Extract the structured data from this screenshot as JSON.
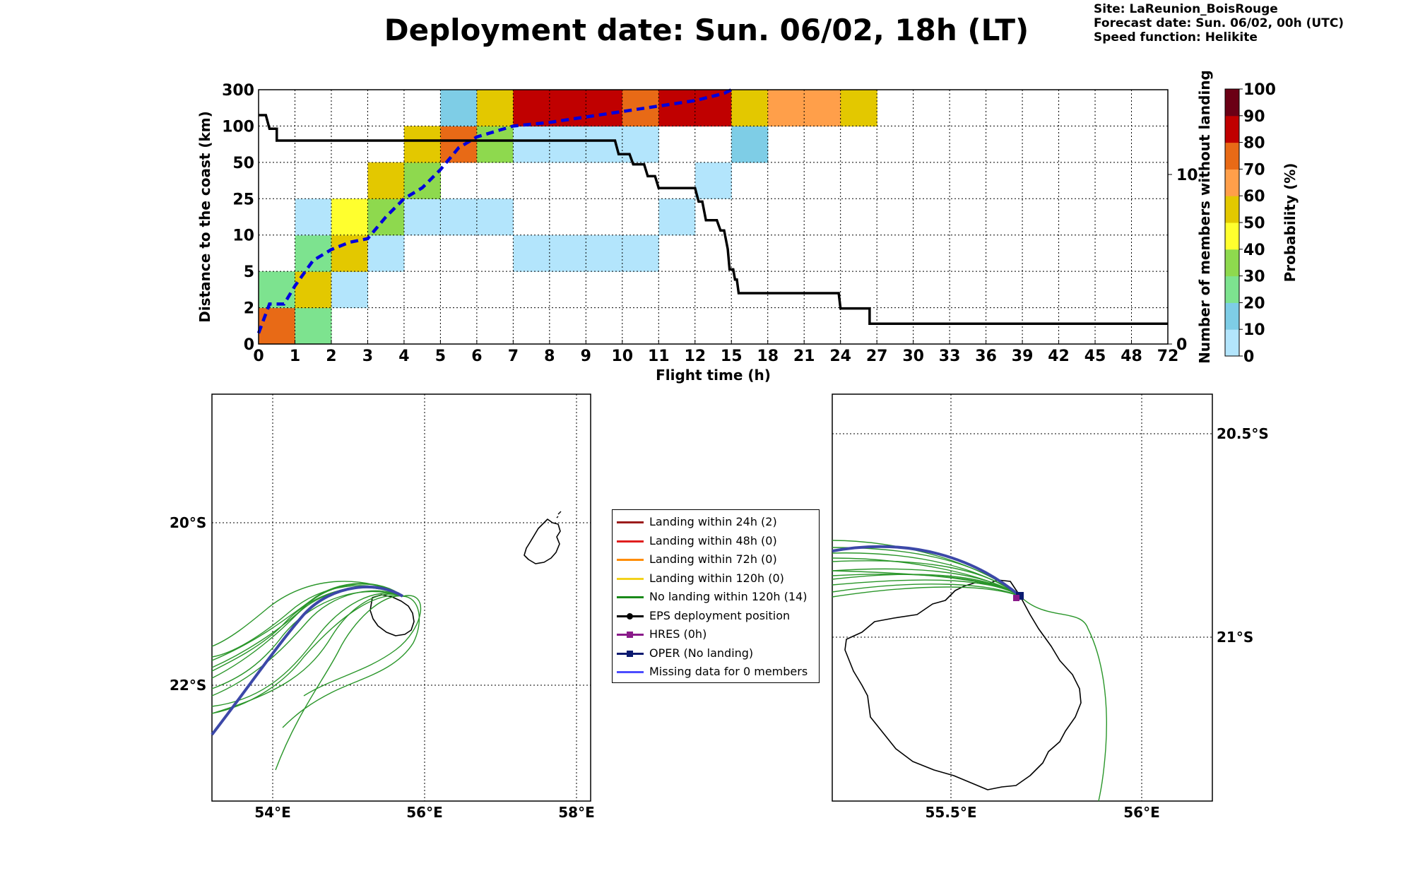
{
  "header": {
    "title": "Deployment date: Sun. 06/02, 18h (LT)",
    "site": "Site: LaReunion_BoisRouge",
    "forecast": "Forecast date: Sun. 06/02, 00h (UTC)",
    "speed": "Speed function: Helikite"
  },
  "colors": {
    "prob_bins": [
      "#b3e5fc",
      "#7ecde6",
      "#7de38f",
      "#8ed94e",
      "#ffff2e",
      "#e3c800",
      "#ff9f4a",
      "#e86a16",
      "#c00000",
      "#6b0015"
    ],
    "eps_members": "#2a962a",
    "oper": "#3c48a8",
    "median_line": "#0000dd",
    "members_line": "#000000"
  },
  "chart_data": [
    {
      "type": "heatmap",
      "xlabel": "Flight time (h)",
      "ylabel": "Distance to the coast (km)",
      "ylabel_right": "Number of members without landing",
      "x_edges": [
        "0",
        "1",
        "2",
        "3",
        "4",
        "5",
        "6",
        "7",
        "8",
        "9",
        "10",
        "11",
        "12",
        "15",
        "18",
        "21",
        "24",
        "27",
        "30",
        "33",
        "36",
        "39",
        "42",
        "45",
        "48",
        "72"
      ],
      "y_edges": [
        "0",
        "2",
        "5",
        "10",
        "25",
        "50",
        "100",
        "300"
      ],
      "y_right_ticks": [
        "0",
        "10"
      ],
      "y_right_max": 15,
      "cells": [
        {
          "x": 0,
          "y": 0,
          "p": 70
        },
        {
          "x": 1,
          "y": 0,
          "p": 20
        },
        {
          "x": 0,
          "y": 1,
          "p": 20
        },
        {
          "x": 1,
          "y": 1,
          "p": 50
        },
        {
          "x": 2,
          "y": 1,
          "p": 0
        },
        {
          "x": 1,
          "y": 2,
          "p": 20
        },
        {
          "x": 2,
          "y": 2,
          "p": 50
        },
        {
          "x": 3,
          "y": 2,
          "p": 0
        },
        {
          "x": 7,
          "y": 2,
          "p": 0
        },
        {
          "x": 8,
          "y": 2,
          "p": 0
        },
        {
          "x": 9,
          "y": 2,
          "p": 0
        },
        {
          "x": 10,
          "y": 2,
          "p": 0
        },
        {
          "x": 1,
          "y": 3,
          "p": 0
        },
        {
          "x": 2,
          "y": 3,
          "p": 40
        },
        {
          "x": 3,
          "y": 3,
          "p": 30
        },
        {
          "x": 4,
          "y": 3,
          "p": 0
        },
        {
          "x": 5,
          "y": 3,
          "p": 0
        },
        {
          "x": 6,
          "y": 3,
          "p": 0
        },
        {
          "x": 11,
          "y": 3,
          "p": 0
        },
        {
          "x": 3,
          "y": 4,
          "p": 50
        },
        {
          "x": 4,
          "y": 4,
          "p": 30
        },
        {
          "x": 12,
          "y": 4,
          "p": 0
        },
        {
          "x": 4,
          "y": 5,
          "p": 50
        },
        {
          "x": 5,
          "y": 5,
          "p": 70
        },
        {
          "x": 6,
          "y": 5,
          "p": 30
        },
        {
          "x": 7,
          "y": 5,
          "p": 0
        },
        {
          "x": 8,
          "y": 5,
          "p": 0
        },
        {
          "x": 9,
          "y": 5,
          "p": 0
        },
        {
          "x": 10,
          "y": 5,
          "p": 0
        },
        {
          "x": 13,
          "y": 5,
          "p": 10
        },
        {
          "x": 5,
          "y": 6,
          "p": 10
        },
        {
          "x": 6,
          "y": 6,
          "p": 50
        },
        {
          "x": 7,
          "y": 6,
          "p": 80
        },
        {
          "x": 8,
          "y": 6,
          "p": 80
        },
        {
          "x": 9,
          "y": 6,
          "p": 80
        },
        {
          "x": 10,
          "y": 6,
          "p": 70
        },
        {
          "x": 11,
          "y": 6,
          "p": 80
        },
        {
          "x": 12,
          "y": 6,
          "p": 80
        },
        {
          "x": 13,
          "y": 6,
          "p": 50
        },
        {
          "x": 14,
          "y": 6,
          "p": 60
        },
        {
          "x": 15,
          "y": 6,
          "p": 60
        },
        {
          "x": 16,
          "y": 6,
          "p": 50
        }
      ],
      "median_distance": [
        [
          0,
          0.3
        ],
        [
          0.3,
          1.1
        ],
        [
          0.7,
          1.1
        ],
        [
          1,
          1.6
        ],
        [
          1.5,
          2.3
        ],
        [
          2,
          2.6
        ],
        [
          2.5,
          2.8
        ],
        [
          3,
          2.9
        ],
        [
          3.5,
          3.5
        ],
        [
          4,
          4.0
        ],
        [
          4.5,
          4.3
        ],
        [
          5,
          4.8
        ],
        [
          5.5,
          5.4
        ],
        [
          6,
          5.7
        ],
        [
          7,
          6.0
        ],
        [
          8,
          6.1
        ],
        [
          9,
          6.25
        ],
        [
          10,
          6.4
        ],
        [
          11,
          6.55
        ],
        [
          12,
          6.7
        ],
        [
          12.8,
          6.9
        ],
        [
          13,
          7.0
        ]
      ],
      "members_without_landing": [
        [
          0,
          13.5
        ],
        [
          0.2,
          13.5
        ],
        [
          0.3,
          12.7
        ],
        [
          0.5,
          12.7
        ],
        [
          0.5,
          12.0
        ],
        [
          9.8,
          12.0
        ],
        [
          9.9,
          11.2
        ],
        [
          10.2,
          11.2
        ],
        [
          10.3,
          10.6
        ],
        [
          10.6,
          10.6
        ],
        [
          10.7,
          9.9
        ],
        [
          10.9,
          9.9
        ],
        [
          11,
          9.2
        ],
        [
          12,
          9.2
        ],
        [
          12.1,
          8.4
        ],
        [
          12.2,
          8.4
        ],
        [
          12.3,
          7.3
        ],
        [
          12.6,
          7.3
        ],
        [
          12.7,
          6.7
        ],
        [
          12.8,
          6.7
        ],
        [
          12.9,
          5.6
        ],
        [
          12.95,
          4.4
        ],
        [
          13.05,
          4.4
        ],
        [
          13.1,
          3.8
        ],
        [
          13.15,
          3.8
        ],
        [
          13.2,
          3.0
        ],
        [
          15.95,
          3.0
        ],
        [
          16,
          2.1
        ],
        [
          16.8,
          2.1
        ],
        [
          16.8,
          1.2
        ],
        [
          25,
          1.2
        ]
      ],
      "colorbar": {
        "label": "Probability (%)",
        "ticks": [
          "0",
          "10",
          "20",
          "30",
          "40",
          "50",
          "60",
          "70",
          "80",
          "90",
          "100"
        ]
      }
    },
    {
      "type": "map",
      "xticks": [
        "54°E",
        "56°E",
        "58°E"
      ],
      "yticks": [
        "20°S",
        "22°S"
      ]
    },
    {
      "type": "map",
      "xticks": [
        "55.5°E",
        "56°E"
      ],
      "yticks": [
        "20.5°S",
        "21°S"
      ]
    }
  ],
  "legend": [
    {
      "label": "Landing within 24h (2)",
      "color": "#9b1c1c",
      "marker": ""
    },
    {
      "label": "Landing within 48h (0)",
      "color": "#e01e1e",
      "marker": ""
    },
    {
      "label": "Landing within 72h (0)",
      "color": "#ff8c00",
      "marker": ""
    },
    {
      "label": "Landing within 120h (0)",
      "color": "#f2d21b",
      "marker": ""
    },
    {
      "label": "No landing within 120h (14)",
      "color": "#1a8a1a",
      "marker": ""
    },
    {
      "label": "EPS deployment position",
      "color": "#000000",
      "marker": "circle"
    },
    {
      "label": "HRES (0h)",
      "color": "#8a1a8a",
      "marker": "square"
    },
    {
      "label": "OPER (No landing)",
      "color": "#0b1a70",
      "marker": "square"
    },
    {
      "label": "Missing data for 0 members",
      "color": "#4c4cff",
      "marker": ""
    }
  ]
}
